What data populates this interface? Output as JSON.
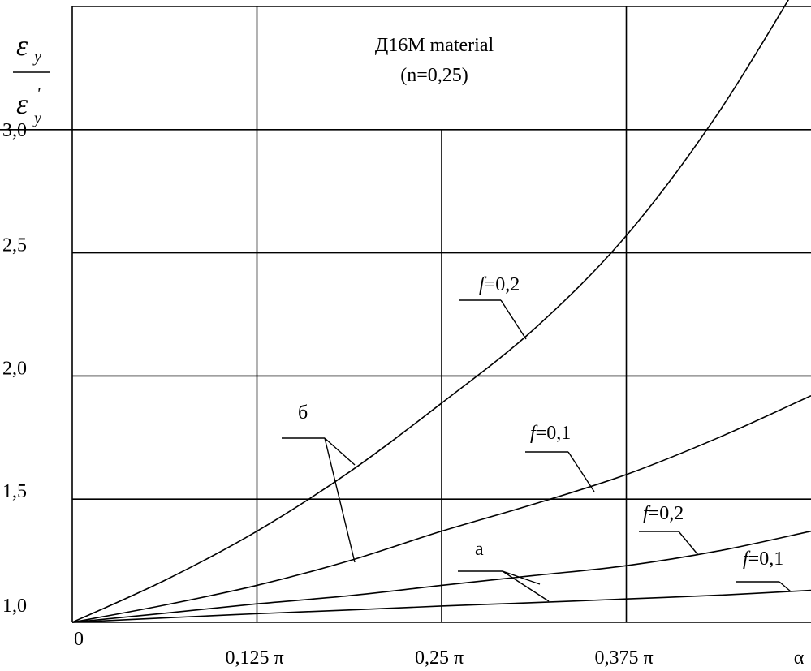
{
  "chart_data": {
    "type": "line",
    "title": "Д16М material",
    "subtitle": "(n=0,25)",
    "ylabel": {
      "numerator_symbol": "ε",
      "numerator_sub": "y",
      "denominator_symbol": "ε",
      "denominator_sub": "y",
      "denominator_prime": "'"
    },
    "xlabel": "α",
    "xlim": [
      0,
      0.5
    ],
    "ylim": [
      1.0,
      3.5
    ],
    "x_unit": "π",
    "grid": true,
    "x_ticks": [
      {
        "value": 0,
        "label": "0"
      },
      {
        "value": 0.125,
        "label": "0,125 π"
      },
      {
        "value": 0.25,
        "label": "0,25 π"
      },
      {
        "value": 0.375,
        "label": "0,375 π"
      },
      {
        "value": 0.5,
        "label": "α"
      }
    ],
    "y_ticks": [
      {
        "value": 1.0,
        "label": "1,0"
      },
      {
        "value": 1.5,
        "label": "1,5"
      },
      {
        "value": 2.0,
        "label": "2,0"
      },
      {
        "value": 2.5,
        "label": "2,5"
      },
      {
        "value": 3.0,
        "label": "3,0"
      }
    ],
    "series": [
      {
        "name": "б: f=0,2",
        "group": "б",
        "f_label": "=0,2",
        "x": [
          0,
          0.0625,
          0.125,
          0.1875,
          0.25,
          0.3125,
          0.375,
          0.4375,
          0.5
        ],
        "values": [
          1.0,
          1.17,
          1.37,
          1.61,
          1.89,
          2.19,
          2.57,
          3.07,
          3.68
        ]
      },
      {
        "name": "б: f=0,1",
        "group": "б",
        "f_label": "=0,1",
        "x": [
          0,
          0.0625,
          0.125,
          0.1875,
          0.25,
          0.3125,
          0.375,
          0.4375,
          0.5
        ],
        "values": [
          1.0,
          1.07,
          1.15,
          1.25,
          1.37,
          1.48,
          1.6,
          1.75,
          1.92
        ]
      },
      {
        "name": "а: f=0,2",
        "group": "а",
        "f_label": "=0,2",
        "x": [
          0,
          0.0625,
          0.125,
          0.1875,
          0.25,
          0.3125,
          0.375,
          0.4375,
          0.5
        ],
        "values": [
          1.0,
          1.037,
          1.075,
          1.108,
          1.15,
          1.19,
          1.23,
          1.29,
          1.37
        ]
      },
      {
        "name": "а: f=0,1",
        "group": "а",
        "f_label": "=0,1",
        "x": [
          0,
          0.0625,
          0.125,
          0.1875,
          0.25,
          0.3125,
          0.375,
          0.4375,
          0.5
        ],
        "values": [
          1.0,
          1.018,
          1.035,
          1.05,
          1.066,
          1.08,
          1.095,
          1.11,
          1.13
        ]
      }
    ],
    "annotations": {
      "group_a": "а",
      "group_b": "б",
      "f_symbol": "f"
    }
  }
}
